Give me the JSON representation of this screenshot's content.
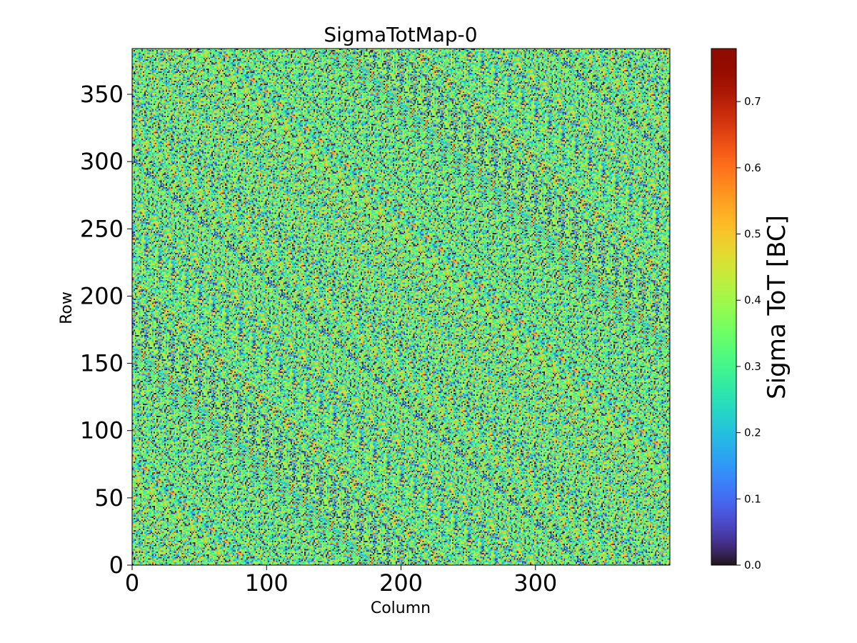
{
  "chart_data": {
    "type": "heatmap",
    "title": "SigmaTotMap-0",
    "xlabel": "Column",
    "ylabel": "Row",
    "xlim": [
      0,
      400
    ],
    "ylim": [
      0,
      384
    ],
    "x_ticks": [
      0,
      100,
      200,
      300
    ],
    "y_ticks": [
      0,
      50,
      100,
      150,
      200,
      250,
      300,
      350
    ],
    "grid": false,
    "colormap": "turbo",
    "colorbar": {
      "label": "Sigma ToT [BC]",
      "range": [
        0.0,
        0.78
      ],
      "ticks": [
        "0.0",
        "0.1",
        "0.2",
        "0.3",
        "0.4",
        "0.5",
        "0.6",
        "0.7"
      ]
    },
    "value_distribution": {
      "description": "noise map, per-pixel values scattered around a typical level",
      "typical": 0.33,
      "spread": 0.12,
      "min": 0.0,
      "max": 0.78
    }
  }
}
